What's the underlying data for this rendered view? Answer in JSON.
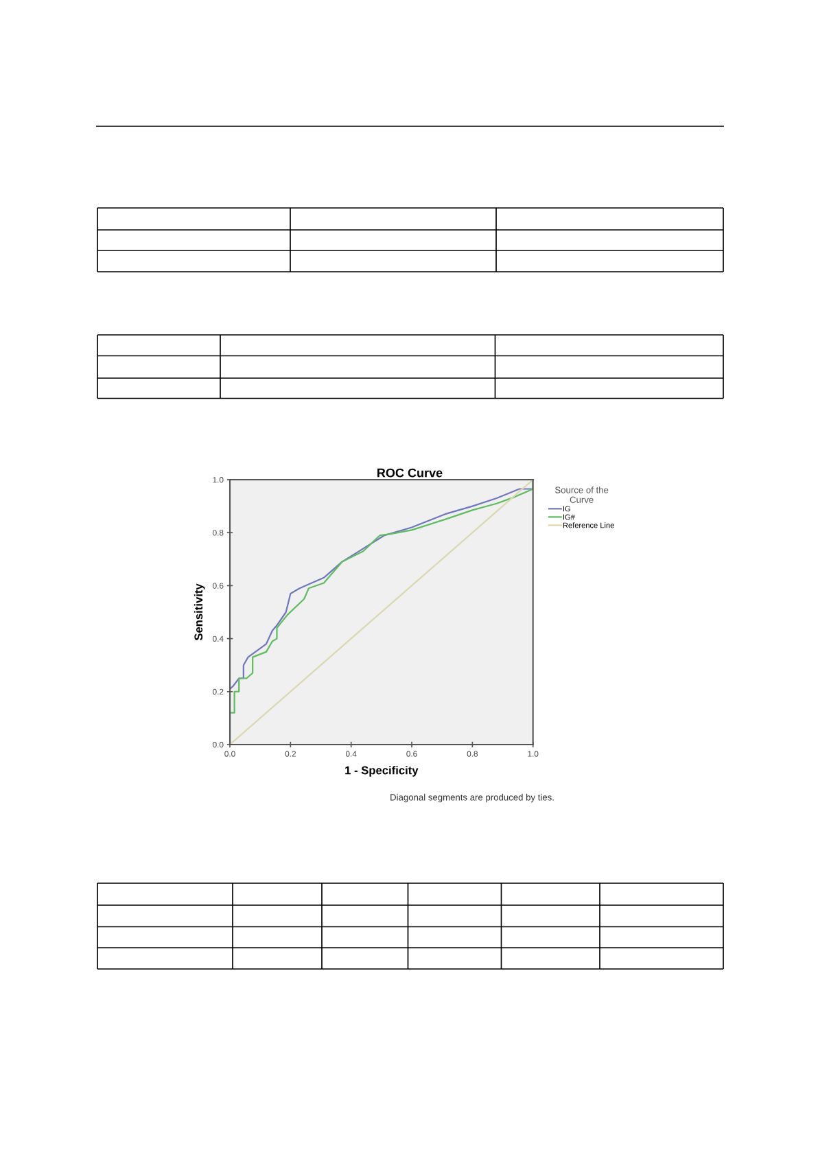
{
  "chart_data": {
    "type": "line",
    "title": "ROC Curve",
    "xlabel": "1 - Specificity",
    "ylabel": "Sensitivity",
    "legend_title": "Source of the\nCurve",
    "legend": "right",
    "annotations": [
      "Diagonal segments are produced by ties."
    ],
    "xlim": [
      0,
      1
    ],
    "ylim": [
      0,
      1
    ],
    "xticks": [
      {
        "value": 0,
        "label": "0.0"
      },
      0.2,
      0.4,
      0.6,
      0.8,
      {
        "value": 1,
        "label": "1.0"
      }
    ],
    "yticks": [
      {
        "value": 0,
        "label": "0.0"
      },
      0.2,
      0.4,
      0.6,
      0.8,
      {
        "value": 1,
        "label": "1.0"
      }
    ],
    "series": [
      {
        "name": "IG",
        "color": "#7077c0",
        "x": [
          0,
          0,
          0.01,
          0.03,
          0.045,
          0.045,
          0.06,
          0.12,
          0.14,
          0.155,
          0.185,
          0.2,
          0.23,
          0.31,
          0.37,
          0.44,
          0.51,
          0.6,
          0.71,
          0.8,
          0.88,
          0.955,
          1,
          1
        ],
        "values": [
          0,
          0.21,
          0.22,
          0.25,
          0.25,
          0.3,
          0.33,
          0.38,
          0.43,
          0.45,
          0.5,
          0.57,
          0.59,
          0.63,
          0.69,
          0.74,
          0.79,
          0.82,
          0.87,
          0.9,
          0.93,
          0.965,
          0.965,
          1
        ]
      },
      {
        "name": "IG#",
        "color": "#5cbf5c",
        "x": [
          0,
          0,
          0.015,
          0.015,
          0.03,
          0.03,
          0.055,
          0.075,
          0.075,
          0.12,
          0.14,
          0.155,
          0.155,
          0.19,
          0.245,
          0.26,
          0.31,
          0.37,
          0.44,
          0.495,
          0.53,
          0.6,
          0.71,
          0.8,
          0.88,
          0.94,
          1,
          1
        ],
        "values": [
          0,
          0.12,
          0.12,
          0.2,
          0.2,
          0.25,
          0.25,
          0.27,
          0.33,
          0.35,
          0.39,
          0.4,
          0.44,
          0.49,
          0.55,
          0.59,
          0.61,
          0.69,
          0.73,
          0.79,
          0.795,
          0.81,
          0.85,
          0.885,
          0.91,
          0.935,
          0.965,
          1
        ]
      },
      {
        "name": "Reference Line",
        "color": "#dcd8ae",
        "x": [
          0,
          1
        ],
        "values": [
          0,
          1
        ]
      }
    ]
  }
}
